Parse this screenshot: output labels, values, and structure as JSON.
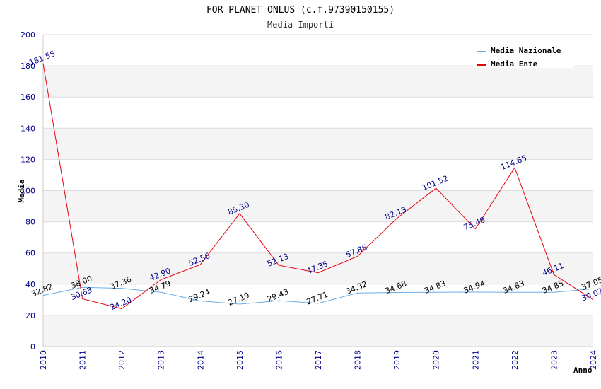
{
  "chart_data": {
    "type": "line",
    "title": "FOR PLANET ONLUS (c.f.97390150155)",
    "subtitle": "Media Importi",
    "xlabel": "Anno",
    "ylabel": "Media",
    "ylim": [
      0,
      200
    ],
    "yticks": [
      "0",
      "20",
      "40",
      "60",
      "80",
      "100",
      "120",
      "140",
      "160",
      "180",
      "200"
    ],
    "x": [
      "2010",
      "2011",
      "2012",
      "2013",
      "2014",
      "2015",
      "2016",
      "2017",
      "2018",
      "2019",
      "2020",
      "2021",
      "2022",
      "2023",
      "2024"
    ],
    "grid": true,
    "legend_position": "top-right",
    "series": [
      {
        "name": "Media Nazionale",
        "color": "#6aaee8",
        "label_color": "#000000",
        "values": [
          32.82,
          38.0,
          37.36,
          34.79,
          29.24,
          27.19,
          29.43,
          27.71,
          34.32,
          34.68,
          34.83,
          34.94,
          34.83,
          34.85,
          37.05
        ],
        "labels": [
          "32.82",
          "38.00",
          "37.36",
          "34.79",
          "29.24",
          "27.19",
          "29.43",
          "27.71",
          "34.32",
          "34.68",
          "34.83",
          "34.94",
          "34.83",
          "34.85",
          "37.05"
        ]
      },
      {
        "name": "Media Ente",
        "color": "#e8000b",
        "label_color": "#00008b",
        "values": [
          181.55,
          30.63,
          24.2,
          42.9,
          52.56,
          85.3,
          52.13,
          47.35,
          57.86,
          82.13,
          101.52,
          75.48,
          114.65,
          46.11,
          30.02
        ],
        "labels": [
          "181.55",
          "30.63",
          "24.20",
          "42.90",
          "52.56",
          "85.30",
          "52.13",
          "47.35",
          "57.86",
          "82.13",
          "101.52",
          "75.48",
          "114.65",
          "46.11",
          "30.02"
        ]
      }
    ]
  }
}
